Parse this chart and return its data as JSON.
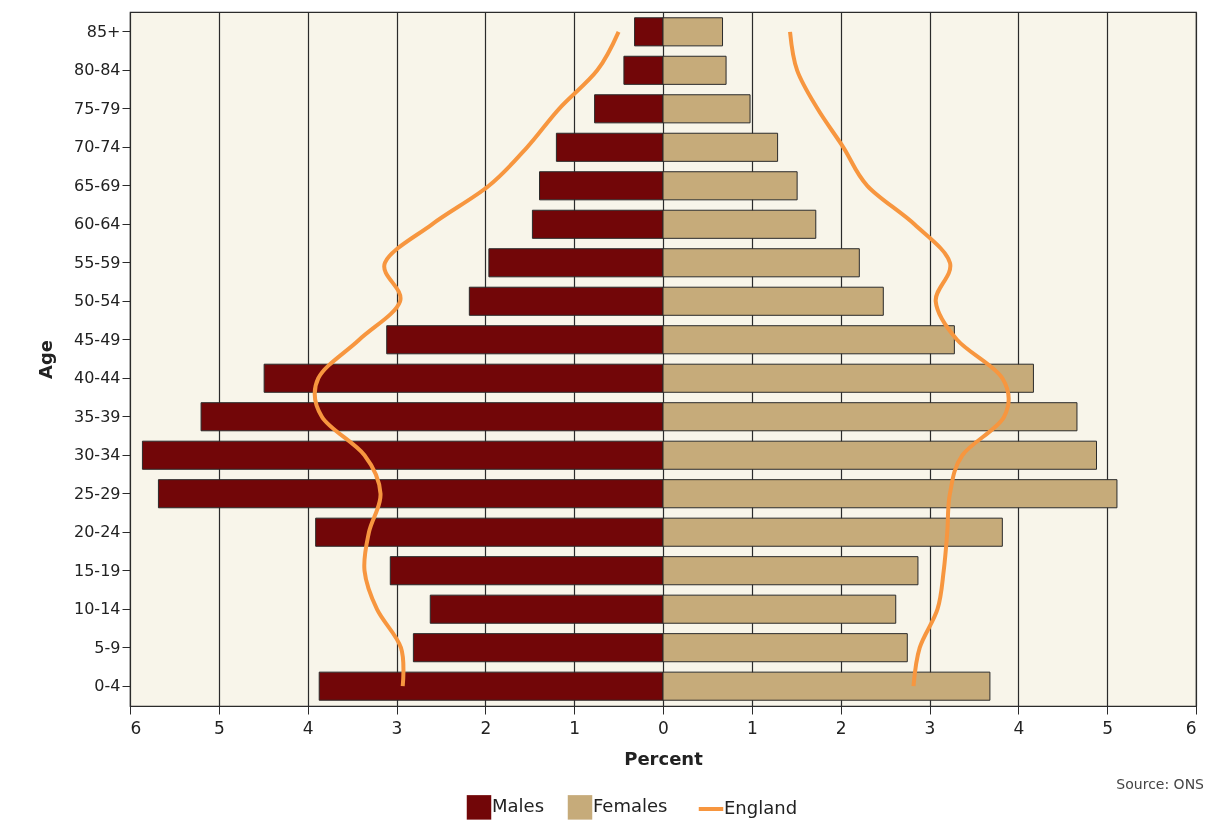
{
  "chart_data": {
    "type": "bar",
    "orientation": "horizontal",
    "categories": [
      "85+",
      "80-84",
      "75-79",
      "70-74",
      "65-69",
      "60-64",
      "55-59",
      "50-54",
      "45-49",
      "40-44",
      "35-39",
      "30-34",
      "25-29",
      "20-24",
      "15-19",
      "10-14",
      "5-9",
      "0-4"
    ],
    "series": [
      {
        "name": "Males",
        "color": "#720608",
        "values": [
          -0.32,
          -0.44,
          -0.77,
          -1.2,
          -1.39,
          -1.47,
          -1.96,
          -2.18,
          -3.11,
          -4.49,
          -5.2,
          -5.86,
          -5.68,
          -3.91,
          -3.07,
          -2.62,
          -2.81,
          -3.87
        ]
      },
      {
        "name": "Females",
        "color": "#c6ab7a",
        "values": [
          0.67,
          0.71,
          0.98,
          1.29,
          1.51,
          1.72,
          2.21,
          2.48,
          3.28,
          4.17,
          4.66,
          4.88,
          5.11,
          3.82,
          2.87,
          2.62,
          2.75,
          3.68
        ]
      },
      {
        "name": "England",
        "type": "line",
        "color": "#f7963f",
        "values": [
          -0.5,
          -0.74,
          -1.17,
          -1.53,
          -1.96,
          -2.6,
          -3.13,
          -2.96,
          -3.42,
          -3.88,
          -3.84,
          -3.36,
          -3.18,
          -3.31,
          -3.36,
          -3.22,
          -2.95,
          -2.93
        ]
      },
      {
        "type": "line",
        "color": "#f7963f",
        "values": [
          1.43,
          1.51,
          1.74,
          2.03,
          2.3,
          2.83,
          3.23,
          3.07,
          3.31,
          3.82,
          3.84,
          3.37,
          3.23,
          3.2,
          3.16,
          3.09,
          2.89,
          2.82
        ]
      }
    ],
    "xlabel": "Percent",
    "ylabel": "Age",
    "xlim": [
      -6,
      6
    ],
    "xticks": [
      {
        "value": -6,
        "label": "6"
      },
      {
        "value": -5,
        "label": "5"
      },
      {
        "value": -4,
        "label": "4"
      },
      {
        "value": -3,
        "label": "3"
      },
      {
        "value": -2,
        "label": "2"
      },
      {
        "value": -1,
        "label": "1"
      },
      0,
      1,
      2,
      3,
      4,
      5,
      6
    ],
    "grid": "x",
    "legend": "bottom",
    "stacked": true,
    "annotations": [
      "Source: ONS"
    ]
  }
}
